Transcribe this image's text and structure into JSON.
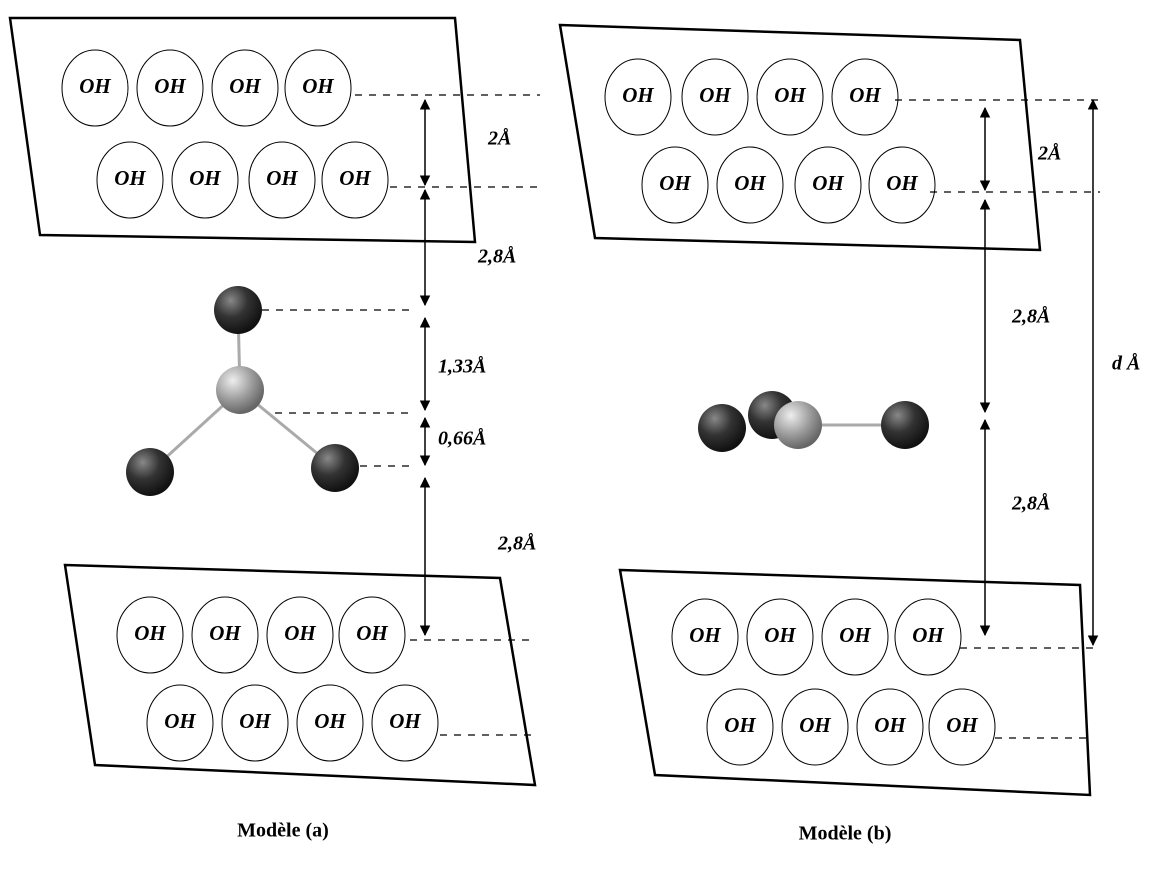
{
  "panels": [
    {
      "caption": "Modèle (a)",
      "layers": [
        [
          [
            "OH",
            "OH",
            "OH",
            "OH"
          ],
          [
            "OH",
            "OH",
            "OH",
            "OH"
          ]
        ],
        [
          [
            "OH",
            "OH",
            "OH",
            "OH"
          ],
          [
            "OH",
            "OH",
            "OH",
            "OH"
          ]
        ]
      ],
      "distances": [
        "2Å",
        "2,8Å",
        "1,33Å",
        "0,66Å",
        "2,8Å"
      ]
    },
    {
      "caption": "Modèle (b)",
      "layers": [
        [
          [
            "OH",
            "OH",
            "OH",
            "OH"
          ],
          [
            "OH",
            "OH",
            "OH",
            "OH"
          ]
        ],
        [
          [
            "OH",
            "OH",
            "OH",
            "OH"
          ],
          [
            "OH",
            "OH",
            "OH",
            "OH"
          ]
        ]
      ],
      "distances": [
        "2Å",
        "2,8Å",
        "2,8Å",
        "d Å"
      ]
    }
  ]
}
